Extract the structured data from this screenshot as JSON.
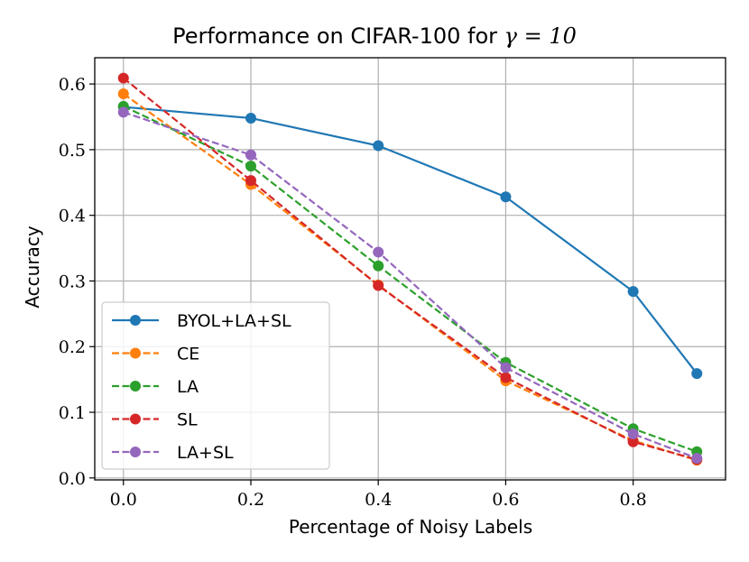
{
  "chart_data": {
    "type": "line",
    "title": "Performance on CIFAR-100 for ",
    "title_math": "γ = 10",
    "xlabel": "Percentage of Noisy Labels",
    "ylabel": "Accuracy",
    "x": [
      0.0,
      0.2,
      0.4,
      0.6,
      0.8,
      0.9
    ],
    "xlim": [
      -0.045,
      0.945
    ],
    "ylim": [
      -0.003,
      0.64
    ],
    "xticks": [
      "0.0",
      "0.2",
      "0.4",
      "0.6",
      "0.8"
    ],
    "yticks": [
      "0.0",
      "0.1",
      "0.2",
      "0.3",
      "0.4",
      "0.5",
      "0.6"
    ],
    "grid": true,
    "legend_position": "lower-left",
    "series": [
      {
        "name": "BYOL+LA+SL",
        "color": "#1f77b4",
        "style": "solid",
        "values": [
          0.565,
          0.548,
          0.506,
          0.428,
          0.284,
          0.159
        ]
      },
      {
        "name": "CE",
        "color": "#ff7f0e",
        "style": "dashed",
        "values": [
          0.585,
          0.447,
          0.294,
          0.148,
          0.057,
          0.027
        ]
      },
      {
        "name": "LA",
        "color": "#2ca02c",
        "style": "dashed",
        "values": [
          0.566,
          0.475,
          0.323,
          0.176,
          0.075,
          0.04
        ]
      },
      {
        "name": "SL",
        "color": "#d62728",
        "style": "dashed",
        "values": [
          0.609,
          0.453,
          0.293,
          0.153,
          0.055,
          0.028
        ]
      },
      {
        "name": "LA+SL",
        "color": "#9467bd",
        "style": "dashed",
        "values": [
          0.557,
          0.492,
          0.344,
          0.168,
          0.067,
          0.03
        ]
      }
    ]
  }
}
